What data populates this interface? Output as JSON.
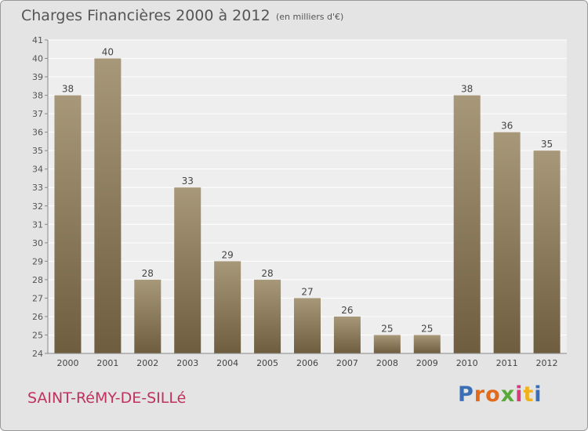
{
  "header": {
    "title": "Charges Financières 2000 à 2012",
    "subtitle": "(en milliers d'€)"
  },
  "footer": {
    "commune": "SAINT-RéMY-DE-SILLé",
    "logo_letters": [
      "P",
      "r",
      "o",
      "x",
      "i",
      "t",
      "i"
    ],
    "logo_colors": [
      "#3a6fb7",
      "#e26a1c",
      "#e26a1c",
      "#5aa83a",
      "#d63b7a",
      "#f0b21a",
      "#3a6fb7"
    ]
  },
  "chart_data": {
    "type": "bar",
    "categories": [
      "2000",
      "2001",
      "2002",
      "2003",
      "2004",
      "2005",
      "2006",
      "2007",
      "2008",
      "2009",
      "2010",
      "2011",
      "2012"
    ],
    "values": [
      38,
      40,
      28,
      33,
      29,
      28,
      27,
      26,
      25,
      25,
      38,
      36,
      35
    ],
    "data_labels": [
      "38",
      "40",
      "28",
      "33",
      "29",
      "28",
      "27",
      "26",
      "25",
      "25",
      "38",
      "36",
      "35"
    ],
    "ylim": [
      24,
      41
    ],
    "yticks": [
      "24",
      "25",
      "26",
      "27",
      "28",
      "29",
      "30",
      "31",
      "32",
      "33",
      "34",
      "35",
      "36",
      "37",
      "38",
      "39",
      "40",
      "41"
    ],
    "grid": true,
    "colors": {
      "bar_dark": "#6e5d3f",
      "bar_light": "#a8987a",
      "plot_bg": "#eeeeee",
      "grid": "#ffffff",
      "axis": "#888888"
    }
  }
}
